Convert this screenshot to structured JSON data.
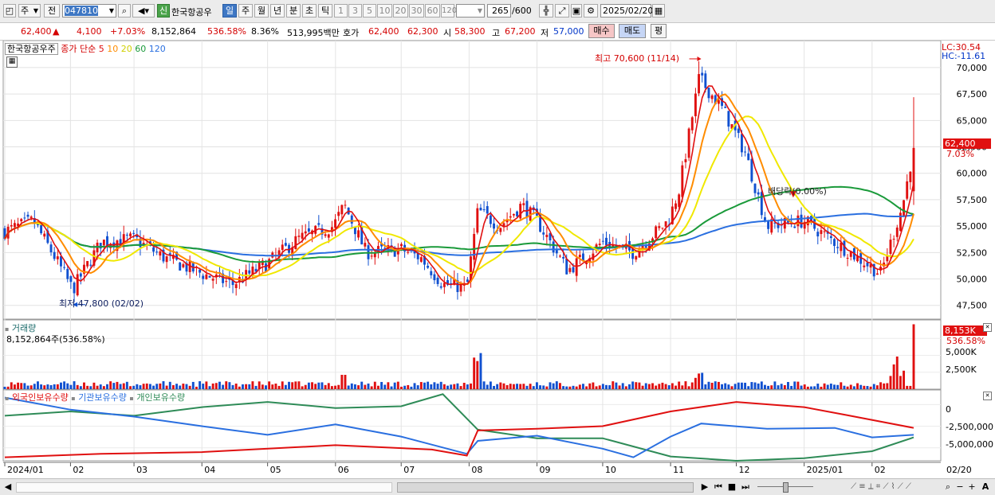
{
  "toolbar": {
    "market": "주",
    "prefix": "전",
    "code": "047810",
    "new_badge": "신",
    "name": "한국항공우",
    "periods": [
      "일",
      "주",
      "월",
      "년",
      "분",
      "초",
      "틱"
    ],
    "intervals": [
      "1",
      "3",
      "5",
      "10",
      "20",
      "30",
      "60",
      "120"
    ],
    "count": "265",
    "count_total": "/600",
    "date": "2025/02/20"
  },
  "info": {
    "price": "62,400",
    "up_arrow": "▲",
    "change": "4,100",
    "change_pct": "+7.03%",
    "volume": "8,152,864",
    "volume_pct": "536.58%",
    "turnover": "8.36%",
    "amount": "513,995백만",
    "quote_label": "호가",
    "ask": "62,400",
    "bid": "62,300",
    "open_label": "시",
    "open": "58,300",
    "high_label": "고",
    "high": "67,200",
    "low_label": "저",
    "low": "57,000",
    "buy_btn": "매수",
    "sell_btn": "매도",
    "eval_btn": "평"
  },
  "price_panel": {
    "legend": {
      "name": "한국항공우주",
      "ma_label": "종가 단순",
      "ma": [
        {
          "period": "5",
          "color": "#e01010"
        },
        {
          "period": "10",
          "color": "#ff8c00"
        },
        {
          "period": "20",
          "color": "#e8e800"
        },
        {
          "period": "60",
          "color": "#1a9a3a"
        },
        {
          "period": "120",
          "color": "#2a6fe0"
        }
      ]
    },
    "lc": "LC:30.54",
    "hc": "HC:-11.61",
    "current_tag": "62,400",
    "current_pct": "7.03%",
    "annot_high": "최고 70,600 (11/14)",
    "annot_low": "최저 47,800 (02/02)",
    "annot_dividend": "배당락(0.00%)"
  },
  "volume_panel": {
    "title": "거래량",
    "value": "8,152,864주(536.58%)",
    "tag": "8,153K",
    "tag_pct": "536.58%",
    "ticks": [
      "5,000K",
      "2,500K"
    ]
  },
  "holding_panel": {
    "series": [
      {
        "name": "외국인보유수량",
        "color": "#e01010"
      },
      {
        "name": "기관보유수량",
        "color": "#2a6fe0"
      },
      {
        "name": "개인보유수량",
        "color": "#2e8b57"
      }
    ],
    "ticks": [
      "0",
      "-2,500,000",
      "-5,000,000"
    ]
  },
  "x_axis": {
    "labels": [
      "2024/01",
      "02",
      "03",
      "04",
      "05",
      "06",
      "07",
      "08",
      "09",
      "10",
      "11",
      "12",
      "2025/01",
      "02"
    ],
    "right_label": "02/20"
  },
  "chart_data": {
    "type": "candlestick",
    "x_range": [
      "2024/01",
      "2025/02/20"
    ],
    "y_ticks": [
      47500,
      50000,
      52500,
      55000,
      57500,
      60000,
      62500,
      65000,
      67500,
      70000
    ],
    "ylim": [
      46500,
      71500
    ],
    "anchor_points": [
      {
        "date": "2024/02/02",
        "low": 47800
      },
      {
        "date": "2024/11/14",
        "high": 70600
      },
      {
        "date": "2025/02/20",
        "open": 58300,
        "high": 67200,
        "low": 57000,
        "close": 62400
      }
    ],
    "close_path": [
      [
        "2024/01/02",
        54500
      ],
      [
        "2024/01/15",
        55500
      ],
      [
        "2024/01/25",
        52000
      ],
      [
        "2024/02/02",
        49000
      ],
      [
        "2024/02/15",
        53500
      ],
      [
        "2024/03/01",
        53800
      ],
      [
        "2024/03/15",
        52000
      ],
      [
        "2024/04/01",
        50500
      ],
      [
        "2024/04/15",
        49500
      ],
      [
        "2024/05/01",
        51500
      ],
      [
        "2024/05/15",
        53800
      ],
      [
        "2024/05/31",
        55000
      ],
      [
        "2024/06/05",
        57000
      ],
      [
        "2024/06/15",
        52500
      ],
      [
        "2024/07/01",
        52800
      ],
      [
        "2024/07/10",
        52000
      ],
      [
        "2024/07/20",
        49500
      ],
      [
        "2024/07/31",
        49200
      ],
      [
        "2024/08/05",
        56500
      ],
      [
        "2024/08/15",
        55000
      ],
      [
        "2024/08/25",
        57000
      ],
      [
        "2024/09/01",
        55500
      ],
      [
        "2024/09/15",
        50800
      ],
      [
        "2024/10/01",
        53500
      ],
      [
        "2024/10/15",
        52500
      ],
      [
        "2024/10/31",
        55500
      ],
      [
        "2024/11/05",
        58500
      ],
      [
        "2024/11/14",
        69000
      ],
      [
        "2024/11/25",
        66000
      ],
      [
        "2024/12/05",
        62000
      ],
      [
        "2024/12/15",
        55000
      ],
      [
        "2025/01/01",
        55500
      ],
      [
        "2025/01/15",
        53500
      ],
      [
        "2025/02/05",
        50500
      ],
      [
        "2025/02/15",
        57000
      ],
      [
        "2025/02/20",
        62400
      ]
    ],
    "moving_averages": [
      "MA5",
      "MA10",
      "MA20",
      "MA60",
      "MA120"
    ],
    "volume_ylim": [
      0,
      8500000
    ],
    "holding_ylim": [
      -6500000,
      1500000
    ]
  }
}
